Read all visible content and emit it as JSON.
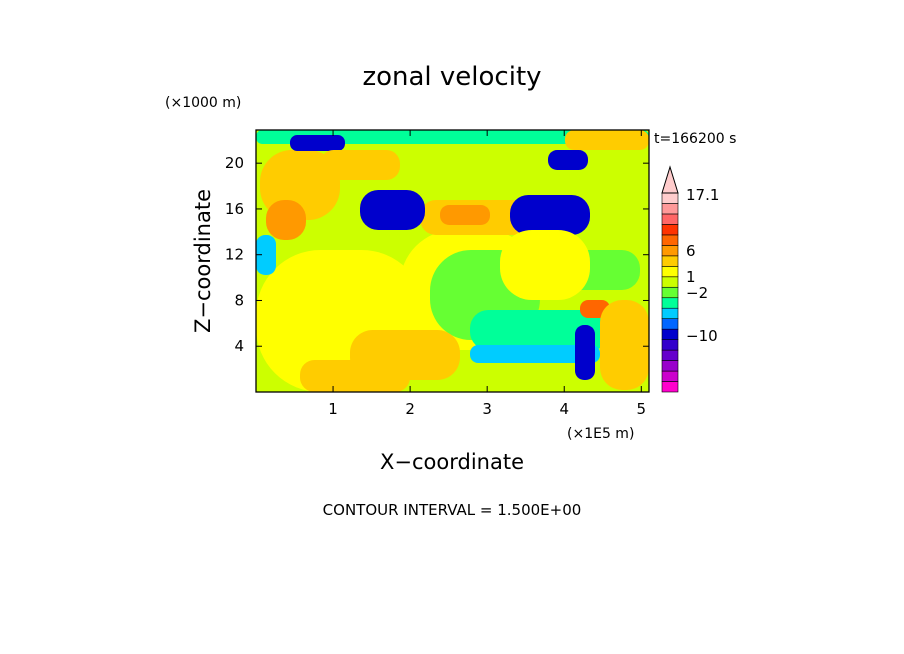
{
  "chart_data": {
    "type": "heatmap",
    "title": "zonal velocity",
    "xlabel": "X−coordinate",
    "ylabel": "Z−coordinate",
    "x_unit": "(×1E5 m)",
    "y_unit": "(×1000 m)",
    "time_label": "t=166200 s",
    "footnote": "CONTOUR INTERVAL = 1.500E+00",
    "xlim": [
      0,
      5.1
    ],
    "ylim": [
      0,
      22.9
    ],
    "x_ticks": [
      1,
      2,
      3,
      4,
      5
    ],
    "y_ticks": [
      4,
      8,
      12,
      16,
      20
    ],
    "grid": false,
    "colorbar": {
      "position": "right",
      "colors": [
        "#ff00cc",
        "#cc00cc",
        "#9900cc",
        "#6600cc",
        "#3300cc",
        "#0000cc",
        "#0066ff",
        "#00ccff",
        "#00ff99",
        "#66ff33",
        "#ccff00",
        "#ffff00",
        "#ffcc00",
        "#ff9900",
        "#ff6600",
        "#ff3300",
        "#ff6666",
        "#ff9999",
        "#ffcccc"
      ],
      "tick_labels": [
        "17.1",
        "6",
        "1",
        "−2",
        "−10"
      ],
      "tick_values": [
        17.1,
        6,
        1,
        -2,
        -10
      ],
      "extend_top": true
    }
  }
}
